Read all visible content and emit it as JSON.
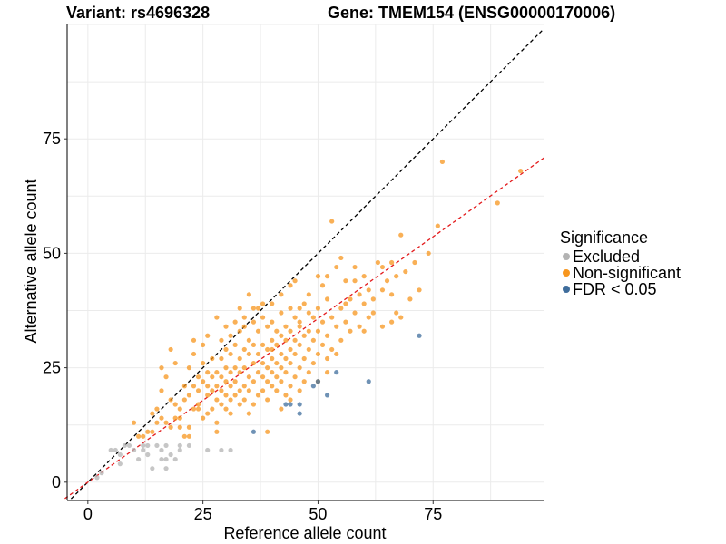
{
  "chart_data": {
    "type": "scatter",
    "title_left": "Variant: rs4696328",
    "title_right": "Gene: TMEM154 (ENSG00000170006)",
    "xlabel": "Reference allele count",
    "ylabel": "Alternative allele count",
    "xlim": [
      -4.5,
      99
    ],
    "ylim": [
      -4,
      100
    ],
    "x_ticks": [
      0,
      25,
      50,
      75
    ],
    "y_ticks": [
      0,
      25,
      50,
      75
    ],
    "grid": true,
    "legend": {
      "title": "Significance",
      "position": "right",
      "items": [
        {
          "label": "Excluded",
          "color": "#b3b3b3"
        },
        {
          "label": "Non-significant",
          "color": "#f7961e"
        },
        {
          "label": "FDR < 0.05",
          "color": "#3f6d9c"
        }
      ]
    },
    "reference_lines": [
      {
        "name": "identity",
        "slope": 1.0,
        "intercept": 0,
        "color": "#000000",
        "dash": true
      },
      {
        "name": "fit",
        "slope": 0.715,
        "intercept": 0,
        "color": "#e31a1c",
        "dash": true
      }
    ],
    "series": [
      {
        "name": "Excluded",
        "color": "#b3b3b3",
        "points": [
          [
            2,
            1
          ],
          [
            3,
            2
          ],
          [
            5,
            7
          ],
          [
            6,
            7
          ],
          [
            7,
            4
          ],
          [
            7,
            6
          ],
          [
            8,
            8
          ],
          [
            9,
            8
          ],
          [
            10,
            7
          ],
          [
            11,
            5
          ],
          [
            12,
            7
          ],
          [
            12,
            8
          ],
          [
            13,
            6
          ],
          [
            14,
            3
          ],
          [
            15,
            8
          ],
          [
            16,
            7
          ],
          [
            16,
            5
          ],
          [
            17,
            3
          ],
          [
            17,
            5
          ],
          [
            18,
            6
          ],
          [
            19,
            5
          ],
          [
            20,
            7
          ],
          [
            20,
            8
          ],
          [
            22,
            8
          ],
          [
            26,
            7
          ],
          [
            29,
            7
          ],
          [
            31,
            7
          ],
          [
            17,
            8
          ],
          [
            13,
            8
          ]
        ]
      },
      {
        "name": "Non-significant",
        "color": "#f7961e",
        "points": [
          [
            10,
            13
          ],
          [
            11,
            10
          ],
          [
            12,
            10
          ],
          [
            13,
            11
          ],
          [
            14,
            11
          ],
          [
            14,
            15
          ],
          [
            15,
            13
          ],
          [
            15,
            16
          ],
          [
            16,
            20
          ],
          [
            16,
            25
          ],
          [
            17,
            23
          ],
          [
            17,
            13
          ],
          [
            18,
            18
          ],
          [
            18,
            29
          ],
          [
            19,
            17
          ],
          [
            19,
            14
          ],
          [
            20,
            14
          ],
          [
            20,
            16
          ],
          [
            21,
            18
          ],
          [
            21,
            21
          ],
          [
            21,
            10
          ],
          [
            22,
            19
          ],
          [
            22,
            25
          ],
          [
            22,
            12
          ],
          [
            23,
            16
          ],
          [
            23,
            21
          ],
          [
            23,
            28
          ],
          [
            24,
            17
          ],
          [
            24,
            20
          ],
          [
            24,
            23
          ],
          [
            25,
            14
          ],
          [
            25,
            22
          ],
          [
            25,
            26
          ],
          [
            25,
            30
          ],
          [
            26,
            19
          ],
          [
            26,
            21
          ],
          [
            26,
            24
          ],
          [
            26,
            32
          ],
          [
            27,
            16
          ],
          [
            27,
            20
          ],
          [
            27,
            23
          ],
          [
            27,
            27
          ],
          [
            28,
            13
          ],
          [
            28,
            18
          ],
          [
            28,
            21
          ],
          [
            28,
            24
          ],
          [
            28,
            36
          ],
          [
            29,
            17
          ],
          [
            29,
            20
          ],
          [
            29,
            23
          ],
          [
            29,
            27
          ],
          [
            29,
            31
          ],
          [
            30,
            16
          ],
          [
            30,
            19
          ],
          [
            30,
            22
          ],
          [
            30,
            25
          ],
          [
            30,
            29
          ],
          [
            30,
            34
          ],
          [
            31,
            15
          ],
          [
            31,
            18
          ],
          [
            31,
            21
          ],
          [
            31,
            24
          ],
          [
            31,
            28
          ],
          [
            31,
            32
          ],
          [
            32,
            19
          ],
          [
            32,
            22
          ],
          [
            32,
            25
          ],
          [
            32,
            30
          ],
          [
            32,
            35
          ],
          [
            33,
            17
          ],
          [
            33,
            20
          ],
          [
            33,
            24
          ],
          [
            33,
            27
          ],
          [
            33,
            33
          ],
          [
            33,
            38
          ],
          [
            34,
            18
          ],
          [
            34,
            21
          ],
          [
            34,
            25
          ],
          [
            34,
            29
          ],
          [
            34,
            34
          ],
          [
            35,
            15
          ],
          [
            35,
            20
          ],
          [
            35,
            23
          ],
          [
            35,
            28
          ],
          [
            35,
            31
          ],
          [
            35,
            41
          ],
          [
            36,
            17
          ],
          [
            36,
            22
          ],
          [
            36,
            26
          ],
          [
            36,
            30
          ],
          [
            36,
            35
          ],
          [
            37,
            19
          ],
          [
            37,
            24
          ],
          [
            37,
            28
          ],
          [
            37,
            33
          ],
          [
            37,
            38
          ],
          [
            38,
            20
          ],
          [
            38,
            23
          ],
          [
            38,
            26
          ],
          [
            38,
            30
          ],
          [
            38,
            36
          ],
          [
            39,
            18
          ],
          [
            39,
            22
          ],
          [
            39,
            25
          ],
          [
            39,
            29
          ],
          [
            39,
            34
          ],
          [
            40,
            21
          ],
          [
            40,
            24
          ],
          [
            40,
            27
          ],
          [
            40,
            31
          ],
          [
            40,
            35
          ],
          [
            40,
            39
          ],
          [
            41,
            20
          ],
          [
            41,
            23
          ],
          [
            41,
            26
          ],
          [
            41,
            30
          ],
          [
            41,
            33
          ],
          [
            42,
            22
          ],
          [
            42,
            25
          ],
          [
            42,
            28
          ],
          [
            42,
            32
          ],
          [
            42,
            37
          ],
          [
            43,
            19
          ],
          [
            43,
            24
          ],
          [
            43,
            27
          ],
          [
            43,
            31
          ],
          [
            43,
            34
          ],
          [
            44,
            21
          ],
          [
            44,
            26
          ],
          [
            44,
            29
          ],
          [
            44,
            33
          ],
          [
            44,
            43
          ],
          [
            45,
            23
          ],
          [
            45,
            28
          ],
          [
            45,
            31
          ],
          [
            45,
            36
          ],
          [
            45,
            44
          ],
          [
            46,
            25
          ],
          [
            46,
            30
          ],
          [
            46,
            34
          ],
          [
            46,
            38
          ],
          [
            47,
            22
          ],
          [
            47,
            27
          ],
          [
            47,
            32
          ],
          [
            47,
            39
          ],
          [
            48,
            24
          ],
          [
            48,
            29
          ],
          [
            48,
            33
          ],
          [
            48,
            41
          ],
          [
            49,
            26
          ],
          [
            49,
            31
          ],
          [
            49,
            36
          ],
          [
            50,
            28
          ],
          [
            50,
            33
          ],
          [
            50,
            38
          ],
          [
            51,
            30
          ],
          [
            51,
            35
          ],
          [
            51,
            43
          ],
          [
            52,
            27
          ],
          [
            52,
            32
          ],
          [
            52,
            40
          ],
          [
            53,
            29
          ],
          [
            53,
            36
          ],
          [
            53,
            57
          ],
          [
            54,
            34
          ],
          [
            54,
            47
          ],
          [
            55,
            31
          ],
          [
            55,
            38
          ],
          [
            55,
            49
          ],
          [
            56,
            35
          ],
          [
            56,
            44
          ],
          [
            57,
            33
          ],
          [
            57,
            40
          ],
          [
            58,
            37
          ],
          [
            58,
            47
          ],
          [
            59,
            34
          ],
          [
            59,
            41
          ],
          [
            60,
            39
          ],
          [
            60,
            45
          ],
          [
            61,
            36
          ],
          [
            61,
            42
          ],
          [
            62,
            40
          ],
          [
            63,
            48
          ],
          [
            64,
            42
          ],
          [
            64,
            47
          ],
          [
            65,
            44
          ],
          [
            66,
            35
          ],
          [
            66,
            48
          ],
          [
            67,
            37
          ],
          [
            67,
            45
          ],
          [
            68,
            36
          ],
          [
            68,
            54
          ],
          [
            69,
            46
          ],
          [
            70,
            40
          ],
          [
            71,
            48
          ],
          [
            72,
            42
          ],
          [
            74,
            50
          ],
          [
            76,
            56
          ],
          [
            77,
            70
          ],
          [
            89,
            61
          ],
          [
            94,
            68
          ],
          [
            39,
            11
          ],
          [
            20,
            12
          ],
          [
            22,
            10
          ],
          [
            24,
            16
          ],
          [
            26,
            15
          ],
          [
            28,
            11
          ],
          [
            18,
            12
          ],
          [
            16,
            14
          ],
          [
            19,
            26
          ],
          [
            23,
            31
          ],
          [
            34,
            36
          ],
          [
            36,
            38
          ],
          [
            38,
            39
          ],
          [
            40,
            29
          ],
          [
            42,
            41
          ],
          [
            44,
            38
          ],
          [
            46,
            35
          ],
          [
            48,
            37
          ],
          [
            50,
            45
          ],
          [
            52,
            45
          ],
          [
            56,
            39
          ],
          [
            58,
            44
          ],
          [
            60,
            33
          ],
          [
            62,
            37
          ],
          [
            64,
            34
          ],
          [
            66,
            41
          ],
          [
            50,
            22
          ],
          [
            52,
            24
          ],
          [
            54,
            28
          ],
          [
            46,
            20
          ],
          [
            44,
            18
          ],
          [
            42,
            16
          ]
        ]
      },
      {
        "name": "FDR < 0.05",
        "color": "#3f6d9c",
        "points": [
          [
            36,
            11
          ],
          [
            43,
            17
          ],
          [
            44,
            17
          ],
          [
            46,
            15
          ],
          [
            46,
            17
          ],
          [
            49,
            21
          ],
          [
            50,
            22
          ],
          [
            52,
            19
          ],
          [
            54,
            24
          ],
          [
            61,
            22
          ],
          [
            72,
            32
          ]
        ]
      }
    ]
  }
}
